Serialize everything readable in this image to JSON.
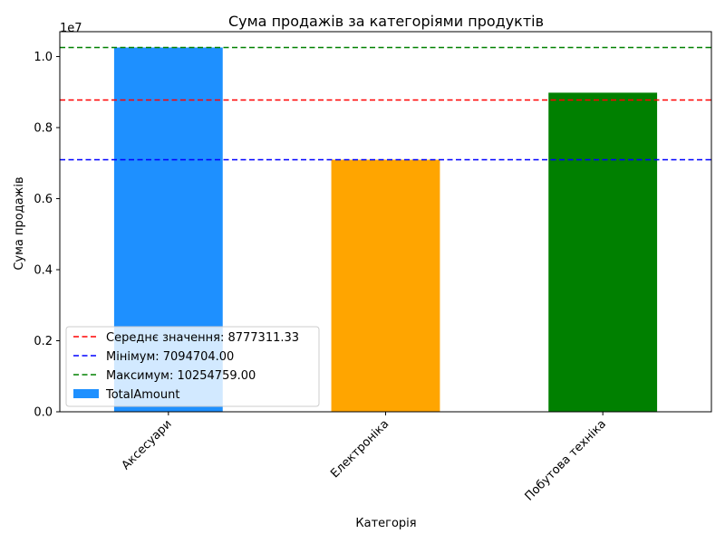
{
  "chart_data": {
    "type": "bar",
    "title": "Сума продажів за категоріями продуктів",
    "xlabel": "Категорія",
    "ylabel": "Сума продажів",
    "y_offset_label": "1e7",
    "ylim": [
      0,
      10700000
    ],
    "y_ticks": [
      0,
      2000000,
      4000000,
      6000000,
      8000000,
      10000000
    ],
    "y_tick_labels": [
      "0.0",
      "0.2",
      "0.4",
      "0.6",
      "0.8",
      "1.0"
    ],
    "categories": [
      "Аксесуари",
      "Електроніка",
      "Побутова техніка"
    ],
    "series": [
      {
        "name": "TotalAmount",
        "values": [
          10254759.0,
          7094704.0,
          8982471.0
        ],
        "colors": [
          "#1e90ff",
          "#ffa500",
          "#008000"
        ]
      }
    ],
    "reference_lines": [
      {
        "label": "Середнє значення: 8777311.33",
        "value": 8777311.33,
        "color": "#ff0000"
      },
      {
        "label": "Мінімум: 7094704.00",
        "value": 7094704.0,
        "color": "#0000ff"
      },
      {
        "label": "Максимум: 10254759.00",
        "value": 10254759.0,
        "color": "#008000"
      }
    ],
    "legend_position": "lower-left",
    "grid": false
  }
}
